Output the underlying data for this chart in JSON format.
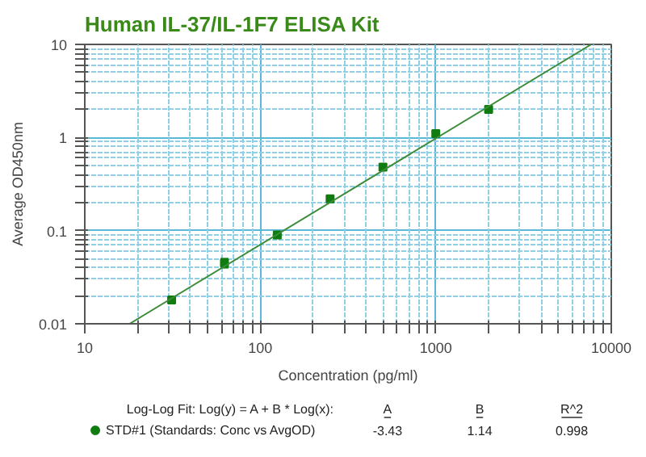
{
  "chart_data": {
    "type": "scatter",
    "title": "Human IL-37/IL-1F7 ELISA Kit",
    "xlabel": "Concentration (pg/ml)",
    "ylabel": "Average OD450nm",
    "log": "xy",
    "xlim": [
      10,
      10000
    ],
    "ylim": [
      0.01,
      10
    ],
    "xticks": [
      10,
      {
        "value": 20,
        "label": null
      },
      {
        "value": 30,
        "label": null
      },
      {
        "value": 40,
        "label": null
      },
      {
        "value": 50,
        "label": null
      },
      {
        "value": 60,
        "label": null
      },
      {
        "value": 70,
        "label": null
      },
      {
        "value": 80,
        "label": null
      },
      {
        "value": 90,
        "label": null
      },
      100,
      {
        "value": 200,
        "label": null
      },
      {
        "value": 300,
        "label": null
      },
      {
        "value": 400,
        "label": null
      },
      {
        "value": 500,
        "label": null
      },
      {
        "value": 600,
        "label": null
      },
      {
        "value": 700,
        "label": null
      },
      {
        "value": 800,
        "label": null
      },
      {
        "value": 900,
        "label": null
      },
      1000,
      {
        "value": 2000,
        "label": null
      },
      {
        "value": 3000,
        "label": null
      },
      {
        "value": 4000,
        "label": null
      },
      {
        "value": 5000,
        "label": null
      },
      {
        "value": 6000,
        "label": null
      },
      {
        "value": 7000,
        "label": null
      },
      {
        "value": 8000,
        "label": null
      },
      {
        "value": 9000,
        "label": null
      },
      10000
    ],
    "yticks": [
      0.01,
      {
        "value": 0.02,
        "label": null
      },
      {
        "value": 0.03,
        "label": null
      },
      {
        "value": 0.04,
        "label": null
      },
      {
        "value": 0.05,
        "label": null
      },
      {
        "value": 0.06,
        "label": null
      },
      {
        "value": 0.07,
        "label": null
      },
      {
        "value": 0.08,
        "label": null
      },
      {
        "value": 0.09,
        "label": null
      },
      0.1,
      {
        "value": 0.2,
        "label": null
      },
      {
        "value": 0.3,
        "label": null
      },
      {
        "value": 0.4,
        "label": null
      },
      {
        "value": 0.5,
        "label": null
      },
      {
        "value": 0.6,
        "label": null
      },
      {
        "value": 0.7,
        "label": null
      },
      {
        "value": 0.8,
        "label": null
      },
      {
        "value": 0.9,
        "label": null
      },
      1,
      {
        "value": 2,
        "label": null
      },
      {
        "value": 3,
        "label": null
      },
      {
        "value": 4,
        "label": null
      },
      {
        "value": 5,
        "label": null
      },
      {
        "value": 6,
        "label": null
      },
      {
        "value": 7,
        "label": null
      },
      {
        "value": 8,
        "label": null
      },
      {
        "value": 9,
        "label": null
      },
      10
    ],
    "grid": true,
    "legend": "bottom",
    "marker": "square",
    "series": [
      {
        "name": "STD#1 (Standards: Conc vs AvgOD)",
        "color": "#107c10",
        "x": [
          31.25,
          62.5,
          125,
          250,
          500,
          1000,
          2000
        ],
        "values": [
          0.018,
          0.045,
          0.09,
          0.22,
          0.48,
          1.1,
          2.0
        ],
        "errors": [
          null,
          [
            0.04,
            0.05
          ],
          null,
          null,
          null,
          null,
          null
        ]
      },
      {
        "type": "line",
        "marker": "none",
        "color": "#3c8c3c",
        "x": [
          18,
          7690
        ],
        "values": [
          0.01,
          10
        ]
      }
    ],
    "annotations": [
      "Log-Log Fit: Log(y) = A + B * Log(x):",
      "A",
      "B",
      "R^2",
      "-3.43",
      "1.14",
      "0.998"
    ]
  }
}
